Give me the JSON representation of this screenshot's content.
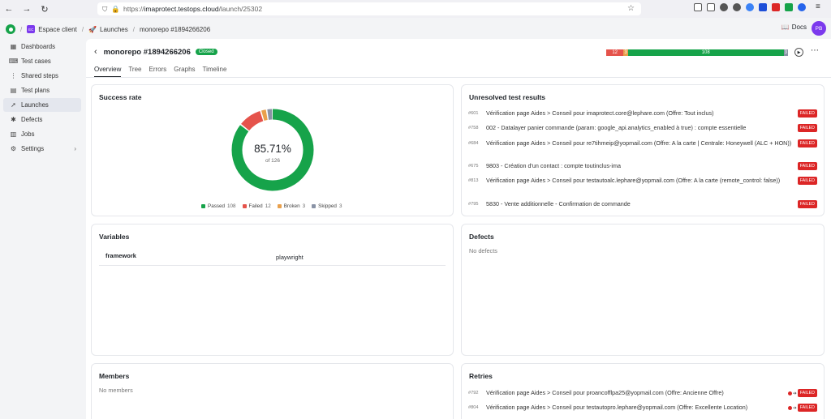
{
  "browser": {
    "url_prefix": "https://",
    "url_host": "imaprotect.testops.cloud",
    "url_path": "/launch/25302"
  },
  "breadcrumb": {
    "org": "Espace client",
    "org_initials": "EC",
    "section": "Launches",
    "current": "monorepo #1894266206"
  },
  "header_right": {
    "docs": "Docs",
    "avatar": "PB"
  },
  "sidebar": {
    "items": [
      {
        "label": "Dashboards",
        "icon": "grid-icon"
      },
      {
        "label": "Test cases",
        "icon": "code-icon"
      },
      {
        "label": "Shared steps",
        "icon": "steps-icon"
      },
      {
        "label": "Test plans",
        "icon": "clipboard-icon"
      },
      {
        "label": "Launches",
        "icon": "rocket-icon",
        "active": true
      },
      {
        "label": "Defects",
        "icon": "bug-icon"
      },
      {
        "label": "Jobs",
        "icon": "server-icon"
      },
      {
        "label": "Settings",
        "icon": "gear-icon"
      }
    ]
  },
  "launch": {
    "title": "monorepo #1894266206",
    "status": "Closed",
    "bar": {
      "failed": 12,
      "broken": 3,
      "passed": 108,
      "skipped": 3
    }
  },
  "tabs": [
    "Overview",
    "Tree",
    "Errors",
    "Graphs",
    "Timeline"
  ],
  "success": {
    "title": "Success rate",
    "rate": "85.71%",
    "of": "of 126",
    "legend": [
      {
        "label": "Passed",
        "value": 108,
        "color": "#16a34a"
      },
      {
        "label": "Failed",
        "value": 12,
        "color": "#e5534b"
      },
      {
        "label": "Broken",
        "value": 3,
        "color": "#e9a04c"
      },
      {
        "label": "Skipped",
        "value": 3,
        "color": "#8a93a6"
      }
    ]
  },
  "unresolved": {
    "title": "Unresolved test results",
    "badge": "FAILED",
    "rows": [
      {
        "id": "#601",
        "text": "Vérification page Aides > Conseil pour imaprotect.core@lephare.com (Offre: Tout inclus)"
      },
      {
        "id": "#758",
        "text": "002 - Datalayer panier commande (param: google_api.analytics_enabled à true) : compte essentielle"
      },
      {
        "id": "#684",
        "text": "Vérification page Aides > Conseil pour re7tihmeip@yopmail.com (Offre: A la carte | Centrale: Honeywell (ALC + HON))"
      },
      {
        "id": "#675",
        "text": "9803 - Création d'un contact : compte toutinclus-ima"
      },
      {
        "id": "#813",
        "text": "Vérification page Aides > Conseil pour testautoalc.lephare@yopmail.com (Offre: A la carte (remote_control: false))"
      },
      {
        "id": "#795",
        "text": "5830 - Vente additionnelle - Confirmation de commande"
      }
    ]
  },
  "variables": {
    "title": "Variables",
    "rows": [
      {
        "key": "framework",
        "value": "playwright"
      }
    ]
  },
  "defects": {
    "title": "Defects",
    "empty": "No defects"
  },
  "members": {
    "title": "Members",
    "empty": "No members"
  },
  "retries": {
    "title": "Retries",
    "badge": "FAILED",
    "rows": [
      {
        "id": "#792",
        "text": "Vérification page Aides > Conseil pour proancofflpa25@yopmail.com (Offre: Ancienne Offre)"
      },
      {
        "id": "#804",
        "text": "Vérification page Aides > Conseil pour testautopro.lephare@yopmail.com (Offre: Excellente Location)"
      }
    ]
  }
}
